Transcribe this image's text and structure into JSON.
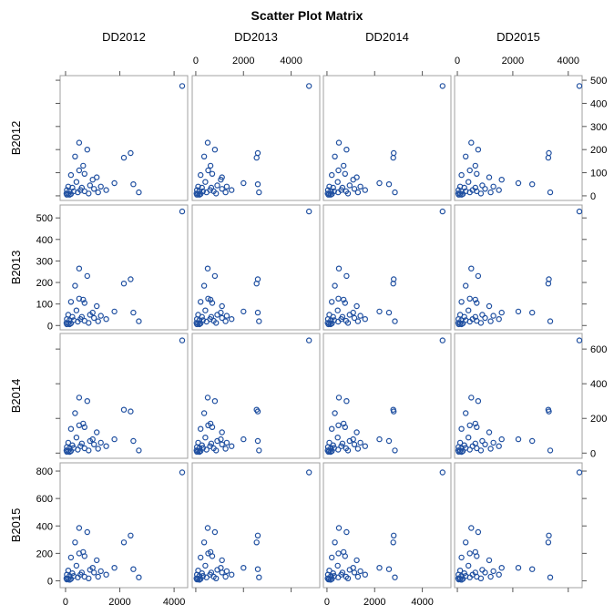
{
  "chart_data": {
    "type": "scatter",
    "title": "Scatter Plot Matrix",
    "variables": [
      "DD2012",
      "DD2013",
      "DD2014",
      "DD2015",
      "B2012",
      "B2013",
      "B2014",
      "B2015"
    ],
    "x_variables": [
      "DD2012",
      "DD2013",
      "DD2014",
      "DD2015"
    ],
    "y_variables": [
      "B2012",
      "B2013",
      "B2014",
      "B2015"
    ],
    "axes": {
      "DD2012": {
        "range": [
          -200,
          4500
        ],
        "ticks": [
          "0",
          "2000",
          "4000"
        ],
        "tick_values": [
          0,
          2000,
          4000
        ],
        "tick_position": "bottom"
      },
      "DD2013": {
        "range": [
          -150,
          5200
        ],
        "ticks": [
          "0",
          "2000",
          "4000"
        ],
        "tick_values": [
          0,
          2000,
          4000
        ],
        "tick_position": "top"
      },
      "DD2014": {
        "range": [
          -150,
          5200
        ],
        "ticks": [
          "0",
          "2000",
          "4000"
        ],
        "tick_values": [
          0,
          2000,
          4000
        ],
        "tick_position": "bottom"
      },
      "DD2015": {
        "range": [
          -100,
          4500
        ],
        "ticks": [
          "0",
          "2000",
          "4000"
        ],
        "tick_values": [
          0,
          2000,
          4000
        ],
        "tick_position": "top"
      },
      "B2012": {
        "range": [
          -20,
          520
        ],
        "ticks": [
          "0",
          "100",
          "200",
          "300",
          "400",
          "500"
        ],
        "tick_values": [
          0,
          100,
          200,
          300,
          400,
          500
        ],
        "tick_position": "right"
      },
      "B2013": {
        "range": [
          -20,
          560
        ],
        "ticks": [
          "0",
          "100",
          "200",
          "300",
          "400",
          "500"
        ],
        "tick_values": [
          0,
          100,
          200,
          300,
          400,
          500
        ],
        "tick_position": "left"
      },
      "B2014": {
        "range": [
          -30,
          690
        ],
        "ticks": [
          "0",
          "200",
          "400",
          "600"
        ],
        "tick_values": [
          0,
          200,
          400,
          600
        ],
        "tick_position": "right"
      },
      "B2015": {
        "range": [
          -50,
          860
        ],
        "ticks": [
          "0",
          "200",
          "400",
          "600",
          "800"
        ],
        "tick_values": [
          0,
          200,
          400,
          600,
          800
        ],
        "tick_position": "left"
      }
    },
    "points": [
      {
        "DD2012": 4300,
        "DD2013": 4750,
        "DD2014": 4850,
        "DD2015": 4400,
        "B2012": 475,
        "B2013": 530,
        "B2014": 650,
        "B2015": 790
      },
      {
        "DD2012": 500,
        "DD2013": 500,
        "DD2014": 500,
        "DD2015": 500,
        "B2012": 230,
        "B2013": 265,
        "B2014": 320,
        "B2015": 385
      },
      {
        "DD2012": 800,
        "DD2013": 800,
        "DD2014": 820,
        "DD2015": 750,
        "B2012": 200,
        "B2013": 230,
        "B2014": 300,
        "B2015": 355
      },
      {
        "DD2012": 2400,
        "DD2013": 2600,
        "DD2014": 2800,
        "DD2015": 3300,
        "B2012": 185,
        "B2013": 215,
        "B2014": 240,
        "B2015": 330
      },
      {
        "DD2012": 2150,
        "DD2013": 2550,
        "DD2014": 2780,
        "DD2015": 3280,
        "B2012": 165,
        "B2013": 195,
        "B2014": 250,
        "B2015": 280
      },
      {
        "DD2012": 350,
        "DD2013": 350,
        "DD2014": 330,
        "DD2015": 300,
        "B2012": 170,
        "B2013": 185,
        "B2014": 230,
        "B2015": 280
      },
      {
        "DD2012": 650,
        "DD2013": 620,
        "DD2014": 700,
        "DD2015": 650,
        "B2012": 130,
        "B2013": 120,
        "B2014": 170,
        "B2015": 210
      },
      {
        "DD2012": 200,
        "DD2013": 200,
        "DD2014": 200,
        "DD2015": 150,
        "B2012": 90,
        "B2013": 110,
        "B2014": 140,
        "B2015": 170
      },
      {
        "DD2012": 500,
        "DD2013": 520,
        "DD2014": 480,
        "DD2015": 450,
        "B2012": 110,
        "B2013": 125,
        "B2014": 160,
        "B2015": 200
      },
      {
        "DD2012": 700,
        "DD2013": 690,
        "DD2014": 760,
        "DD2015": 700,
        "B2012": 95,
        "B2013": 105,
        "B2014": 150,
        "B2015": 180
      },
      {
        "DD2012": 1150,
        "DD2013": 1100,
        "DD2014": 1250,
        "DD2015": 1150,
        "B2012": 80,
        "B2013": 90,
        "B2014": 120,
        "B2015": 150
      },
      {
        "DD2012": 1000,
        "DD2013": 1050,
        "DD2014": 1100,
        "DD2015": 1600,
        "B2012": 70,
        "B2013": 60,
        "B2014": 80,
        "B2015": 95
      },
      {
        "DD2012": 1800,
        "DD2013": 2000,
        "DD2014": 2200,
        "DD2015": 2200,
        "B2012": 55,
        "B2013": 65,
        "B2014": 80,
        "B2015": 95
      },
      {
        "DD2012": 2500,
        "DD2013": 2600,
        "DD2014": 2600,
        "DD2015": 2700,
        "B2012": 50,
        "B2013": 60,
        "B2014": 70,
        "B2015": 85
      },
      {
        "DD2012": 400,
        "DD2013": 400,
        "DD2014": 450,
        "DD2015": 400,
        "B2012": 60,
        "B2013": 70,
        "B2014": 90,
        "B2015": 110
      },
      {
        "DD2012": 900,
        "DD2013": 900,
        "DD2014": 950,
        "DD2015": 900,
        "B2012": 45,
        "B2013": 50,
        "B2014": 70,
        "B2015": 80
      },
      {
        "DD2012": 1300,
        "DD2013": 1300,
        "DD2014": 1400,
        "DD2015": 1300,
        "B2012": 40,
        "B2013": 45,
        "B2014": 60,
        "B2015": 70
      },
      {
        "DD2012": 100,
        "DD2013": 100,
        "DD2014": 100,
        "DD2015": 100,
        "B2012": 40,
        "B2013": 50,
        "B2014": 60,
        "B2015": 75
      },
      {
        "DD2012": 2700,
        "DD2013": 2650,
        "DD2014": 2850,
        "DD2015": 3350,
        "B2012": 15,
        "B2013": 20,
        "B2014": 15,
        "B2015": 25
      },
      {
        "DD2012": 1050,
        "DD2013": 1100,
        "DD2014": 1150,
        "DD2015": 1000,
        "B2012": 30,
        "B2013": 35,
        "B2014": 50,
        "B2015": 60
      },
      {
        "DD2012": 550,
        "DD2013": 600,
        "DD2014": 600,
        "DD2015": 550,
        "B2012": 25,
        "B2013": 30,
        "B2014": 40,
        "B2015": 45
      },
      {
        "DD2012": 50,
        "DD2013": 50,
        "DD2014": 40,
        "DD2015": 40,
        "B2012": 25,
        "B2013": 30,
        "B2014": 35,
        "B2015": 45
      },
      {
        "DD2012": 150,
        "DD2013": 150,
        "DD2014": 170,
        "DD2015": 150,
        "B2012": 20,
        "B2013": 25,
        "B2014": 30,
        "B2015": 35
      },
      {
        "DD2012": 300,
        "DD2013": 300,
        "DD2014": 300,
        "DD2015": 300,
        "B2012": 20,
        "B2013": 25,
        "B2014": 30,
        "B2015": 35
      },
      {
        "DD2012": 700,
        "DD2013": 750,
        "DD2014": 800,
        "DD2015": 700,
        "B2012": 20,
        "B2013": 22,
        "B2014": 28,
        "B2015": 30
      },
      {
        "DD2012": 1200,
        "DD2013": 1250,
        "DD2014": 1300,
        "DD2015": 1200,
        "B2012": 15,
        "B2013": 20,
        "B2014": 25,
        "B2015": 30
      },
      {
        "DD2012": 30,
        "DD2013": 30,
        "DD2014": 30,
        "DD2015": 30,
        "B2012": 10,
        "B2013": 12,
        "B2014": 15,
        "B2015": 18
      },
      {
        "DD2012": 100,
        "DD2013": 100,
        "DD2014": 100,
        "DD2015": 100,
        "B2012": 8,
        "B2013": 10,
        "B2014": 12,
        "B2015": 15
      },
      {
        "DD2012": 200,
        "DD2013": 200,
        "DD2014": 210,
        "DD2015": 200,
        "B2012": 8,
        "B2013": 10,
        "B2014": 12,
        "B2015": 14
      },
      {
        "DD2012": 50,
        "DD2013": 50,
        "DD2014": 60,
        "DD2015": 50,
        "B2012": 5,
        "B2013": 6,
        "B2014": 8,
        "B2015": 10
      },
      {
        "DD2012": 150,
        "DD2013": 150,
        "DD2014": 150,
        "DD2015": 150,
        "B2012": 5,
        "B2013": 6,
        "B2014": 7,
        "B2015": 8
      },
      {
        "DD2012": 450,
        "DD2013": 450,
        "DD2014": 470,
        "DD2015": 450,
        "B2012": 15,
        "B2013": 18,
        "B2014": 20,
        "B2015": 25
      },
      {
        "DD2012": 850,
        "DD2013": 850,
        "DD2014": 880,
        "DD2015": 850,
        "B2012": 10,
        "B2013": 12,
        "B2014": 15,
        "B2015": 18
      },
      {
        "DD2012": 1500,
        "DD2013": 1500,
        "DD2014": 1600,
        "DD2015": 1500,
        "B2012": 25,
        "B2013": 30,
        "B2014": 40,
        "B2015": 45
      },
      {
        "DD2012": 250,
        "DD2013": 260,
        "DD2014": 260,
        "DD2015": 250,
        "B2012": 35,
        "B2013": 40,
        "B2014": 45,
        "B2015": 55
      },
      {
        "DD2012": 600,
        "DD2013": 650,
        "DD2014": 650,
        "DD2015": 650,
        "B2012": 35,
        "B2013": 40,
        "B2014": 55,
        "B2015": 60
      }
    ],
    "marker": "open-circle",
    "marker_color": "#1f4fa0",
    "frame_color": "#a0a0a0",
    "grid": false,
    "legend": "none"
  }
}
